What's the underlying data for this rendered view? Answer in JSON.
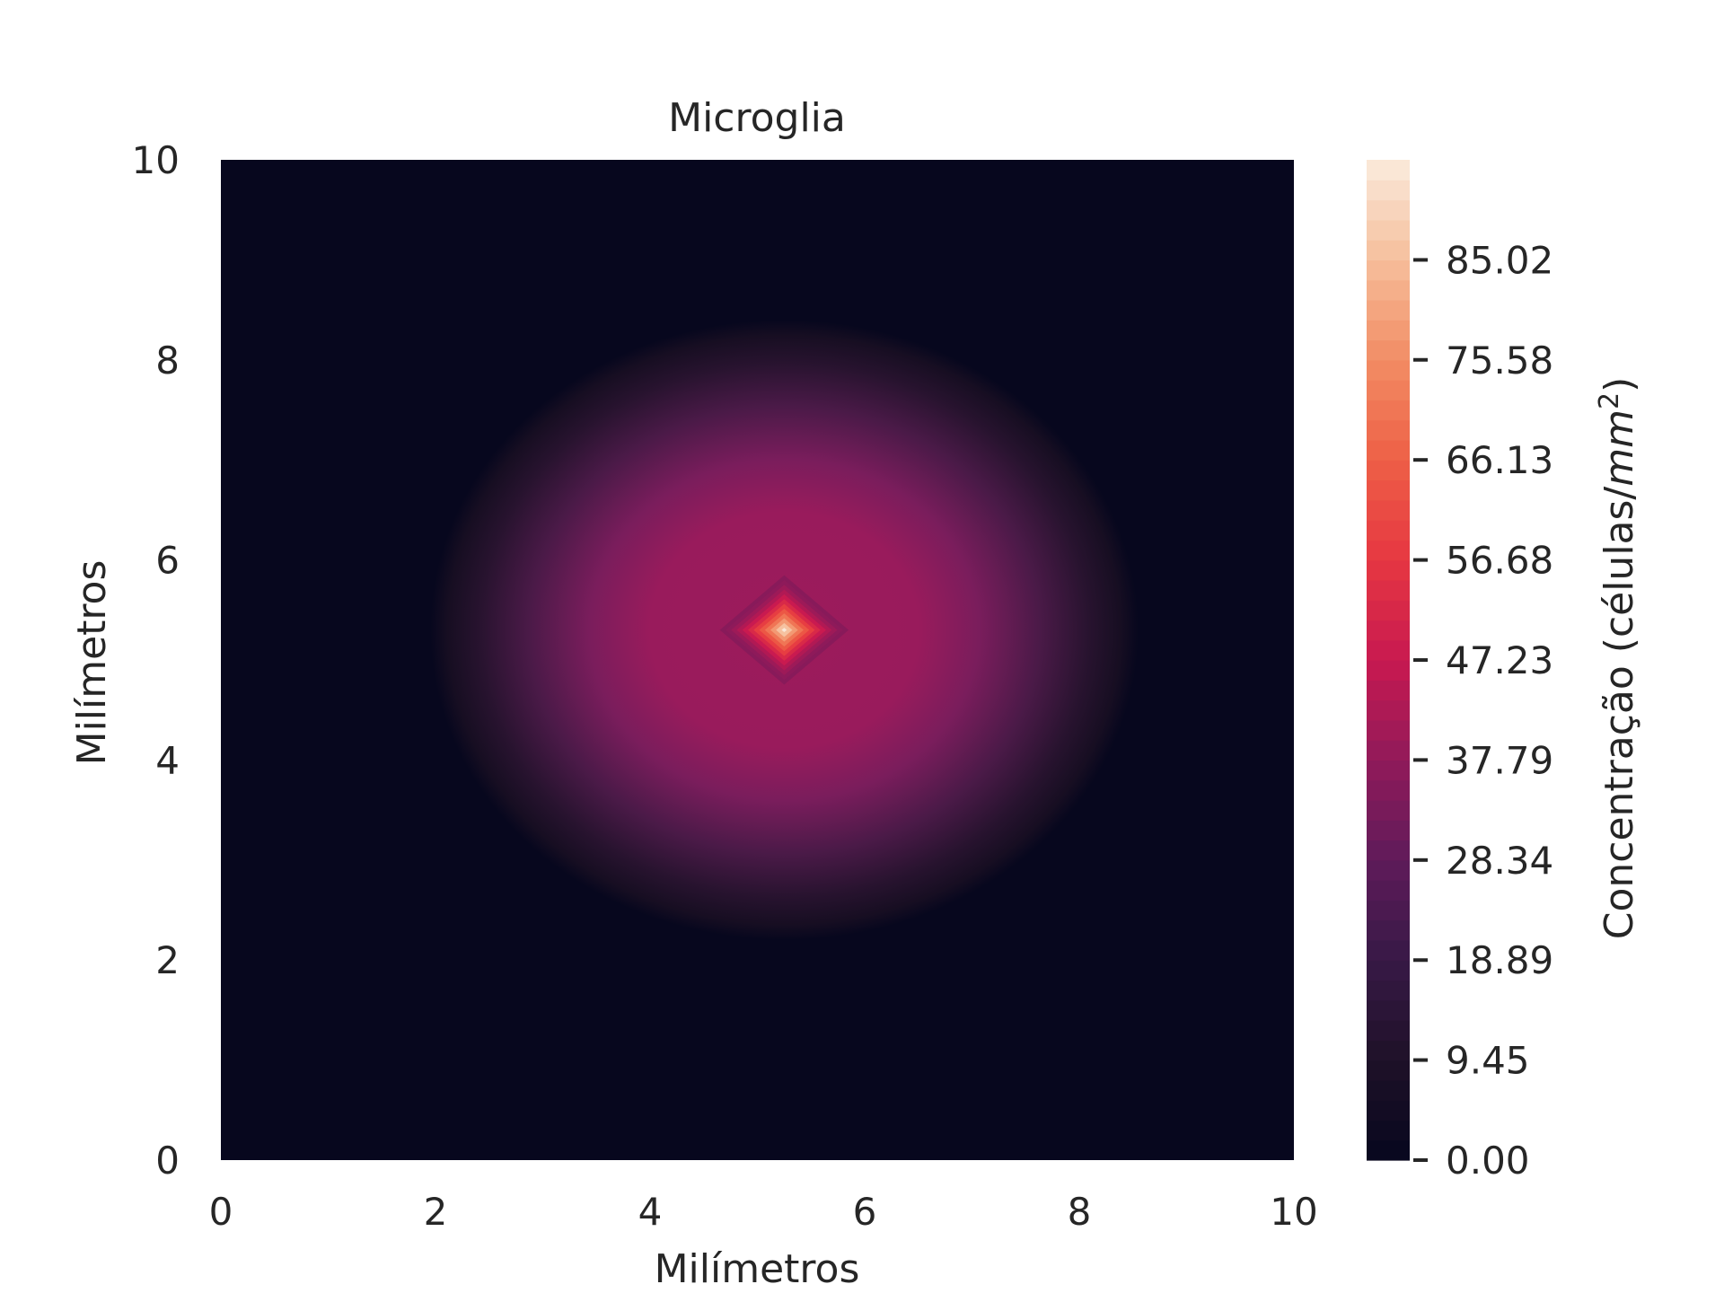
{
  "chart_data": {
    "type": "heatmap",
    "title": "Microglia",
    "xlabel": "Milímetros",
    "ylabel": "Milímetros",
    "xlim": [
      0,
      10
    ],
    "ylim": [
      0,
      10
    ],
    "xticks": [
      0,
      2,
      4,
      6,
      8,
      10
    ],
    "yticks": [
      0,
      2,
      4,
      6,
      8,
      10
    ],
    "grid": false,
    "colormap": "rocket",
    "colorbar": {
      "label_prefix": "Concentração (células/",
      "label_unit": "mm",
      "label_exp": "2",
      "label_suffix": ")",
      "range": [
        0,
        94.47
      ],
      "ticks": [
        0.0,
        9.45,
        18.89,
        28.34,
        37.79,
        47.23,
        56.68,
        66.13,
        75.58,
        85.02
      ],
      "tick_labels": [
        "0.00",
        "9.45",
        "18.89",
        "28.34",
        "37.79",
        "47.23",
        "56.68",
        "66.13",
        "75.58",
        "85.02"
      ],
      "levels": 50
    },
    "field": {
      "description_free": true,
      "center": [
        5.25,
        5.3
      ],
      "plateau_value": 36,
      "plateau_radius": 1.3,
      "outer_radius_x": 3.3,
      "outer_radius_y": 3.1,
      "peak_value": 94,
      "peak_halfwidth": 0.6
    }
  }
}
